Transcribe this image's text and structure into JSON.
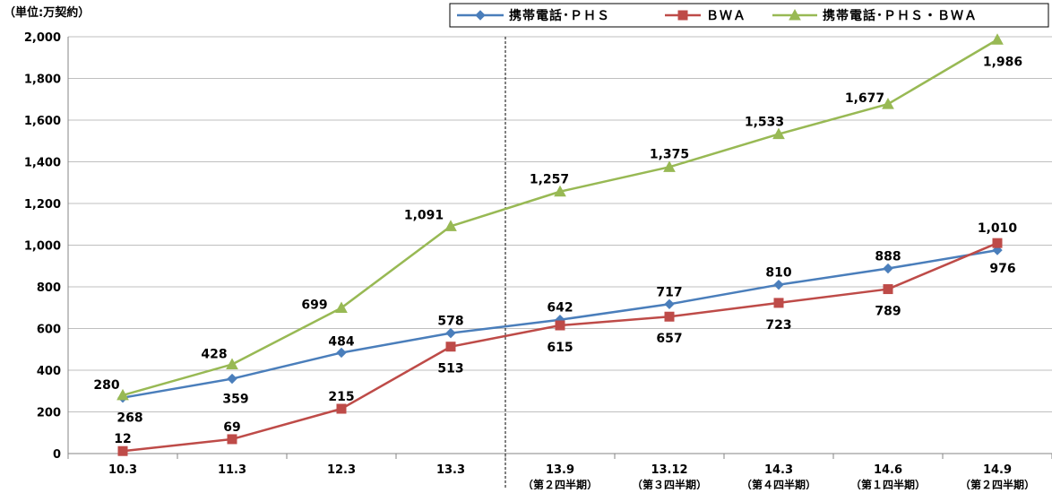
{
  "chart_data": {
    "type": "line",
    "unit_label": "（単位:万契約）",
    "categories": [
      "10.3",
      "11.3",
      "12.3",
      "13.3",
      "13.9",
      "13.12",
      "14.3",
      "14.6",
      "14.9"
    ],
    "category_sublabels": [
      "",
      "",
      "",
      "",
      "（第２四半期）",
      "（第３四半期）",
      "（第４四半期）",
      "（第１四半期）",
      "（第２四半期）"
    ],
    "ylim": [
      0,
      2000
    ],
    "yticks": [
      0,
      200,
      400,
      600,
      800,
      1000,
      1200,
      1400,
      1600,
      1800,
      2000
    ],
    "ytick_labels": [
      "0",
      "200",
      "400",
      "600",
      "800",
      "1,000",
      "1,200",
      "1,400",
      "1,600",
      "1,800",
      "2,000"
    ],
    "grid": "horizontal",
    "legend_position": "top-right",
    "divider_after_category": "13.3",
    "series": [
      {
        "name": "携帯電話･ＰＨＳ",
        "color": "#4a7ebb",
        "marker": "diamond",
        "values": [
          268,
          359,
          484,
          578,
          642,
          717,
          810,
          888,
          976
        ],
        "value_labels": [
          "268",
          "359",
          "484",
          "578",
          "642",
          "717",
          "810",
          "888",
          "976"
        ]
      },
      {
        "name": "ＢＷＡ",
        "color": "#be4b48",
        "marker": "square",
        "values": [
          12,
          69,
          215,
          513,
          615,
          657,
          723,
          789,
          1010
        ],
        "value_labels": [
          "12",
          "69",
          "215",
          "513",
          "615",
          "657",
          "723",
          "789",
          "1,010"
        ]
      },
      {
        "name": "携帯電話･ＰＨＳ・ＢＷＡ",
        "color": "#98b954",
        "marker": "triangle",
        "values": [
          280,
          428,
          699,
          1091,
          1257,
          1375,
          1533,
          1677,
          1986
        ],
        "value_labels": [
          "280",
          "428",
          "699",
          "1,091",
          "1,257",
          "1,375",
          "1,533",
          "1,677",
          "1,986"
        ]
      }
    ]
  }
}
